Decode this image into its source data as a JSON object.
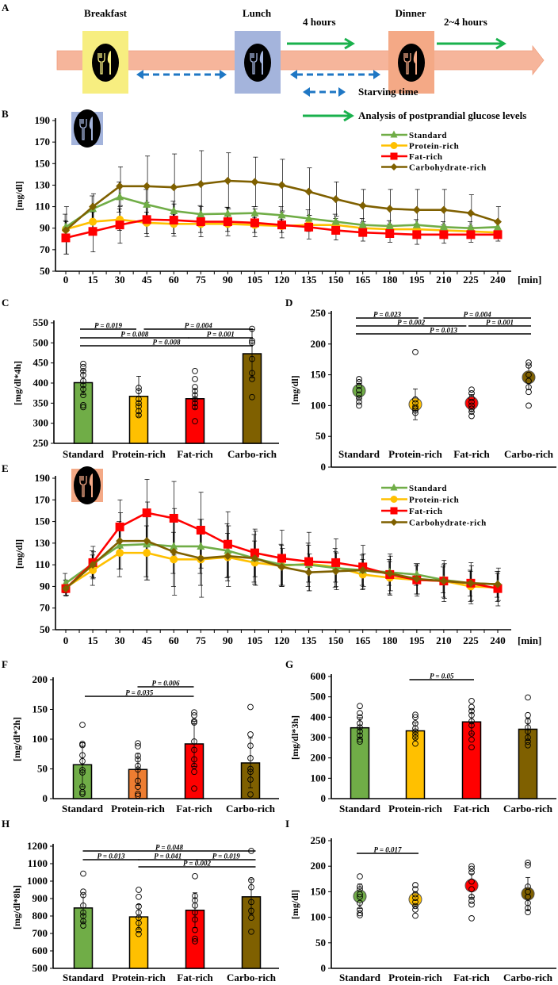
{
  "panel_a": {
    "letter": "A",
    "meals": [
      "Breakfast",
      "Lunch",
      "Dinner"
    ],
    "after_lunch": "4 hours",
    "after_dinner": "2~4 hours",
    "legend_starving": "Starving time",
    "legend_analysis": "Analysis of postprandial glucose levels",
    "colors": {
      "breakfast": "#f7ee80",
      "lunch": "#a4b4dc",
      "dinner": "#f4a986",
      "band": "#f6b59b",
      "starving": "#1f77c4",
      "analysis": "#19b14c"
    }
  },
  "chart_data": [
    {
      "id": "B",
      "letter": "B",
      "type": "line",
      "meal_icon": "lunch-icon",
      "x": [
        0,
        15,
        30,
        45,
        60,
        75,
        90,
        105,
        120,
        135,
        150,
        165,
        180,
        195,
        210,
        225,
        240
      ],
      "xunit": "[min]",
      "ylabel": "[mg/dl]",
      "ylim": [
        50,
        190
      ],
      "yticks": [
        50,
        70,
        90,
        110,
        130,
        150,
        170,
        190
      ],
      "series": [
        {
          "name": "Standard",
          "color": "#70ad47",
          "marker": "triangle",
          "values": [
            91,
            108,
            119,
            112,
            106,
            103,
            103.5,
            104,
            102,
            99,
            96,
            93,
            92,
            93,
            91,
            90,
            91
          ],
          "sd": [
            12,
            12,
            14,
            14,
            9,
            8,
            6,
            6,
            8,
            8,
            7,
            6,
            5,
            5,
            5,
            6,
            6
          ]
        },
        {
          "name": "Protein-rich",
          "color": "#ffc000",
          "marker": "circle",
          "values": [
            89,
            96,
            98,
            95,
            94,
            94,
            94,
            93,
            92,
            93,
            93,
            90,
            89,
            89,
            88,
            87,
            86
          ],
          "sd": [
            8,
            9,
            10,
            10,
            9,
            8,
            7,
            7,
            6,
            6,
            6,
            5,
            5,
            5,
            5,
            5,
            5
          ]
        },
        {
          "name": "Fat-rich",
          "color": "#ff0000",
          "marker": "square",
          "values": [
            81,
            87,
            93,
            98,
            97.5,
            96,
            96,
            95,
            93,
            91,
            88,
            86,
            85,
            84,
            84,
            84,
            84
          ],
          "sd": [
            15,
            19,
            17,
            16,
            15,
            14,
            13,
            13,
            12,
            11,
            9,
            8,
            8,
            9,
            8,
            7,
            6
          ]
        },
        {
          "name": "Carbohydrate-rich",
          "color": "#7f6000",
          "marker": "diamond",
          "values": [
            88,
            110,
            129,
            129,
            128,
            131,
            134,
            133,
            130,
            124,
            117,
            111,
            108,
            107,
            107,
            104,
            96
          ],
          "sd": [
            22,
            12,
            18,
            28,
            31,
            31,
            26,
            23,
            24,
            22,
            16,
            15,
            18,
            19,
            19,
            17,
            14
          ]
        }
      ]
    },
    {
      "id": "C",
      "letter": "C",
      "type": "bar",
      "ylabel": "[mg/dl*4h]",
      "ylim": [
        250,
        550
      ],
      "yticks": [
        250,
        300,
        350,
        400,
        450,
        500,
        550
      ],
      "categories": [
        "Standard",
        "Protein-rich",
        "Fat-rich",
        "Carbo-rich"
      ],
      "colors": [
        "#70ad47",
        "#ffc000",
        "#ff0000",
        "#7f6000"
      ],
      "values": [
        401,
        367,
        361,
        473
      ],
      "sd": [
        30,
        50,
        25,
        60
      ],
      "points": [
        [
          448,
          440,
          430,
          420,
          405,
          395,
          385,
          370,
          345,
          340
        ],
        [
          388,
          380,
          360,
          350,
          342,
          330,
          320
        ],
        [
          430,
          410,
          390,
          380,
          370,
          360,
          350,
          340,
          305
        ],
        [
          535,
          505,
          500,
          460,
          425,
          410,
          365
        ]
      ],
      "pvalues": [
        {
          "text": "P = 0.019",
          "from": 0,
          "to": 0.9,
          "level": 0
        },
        {
          "text": "P = 0.004",
          "from": 1.15,
          "to": 3,
          "level": 0
        },
        {
          "text": "P = 0.008",
          "from": 0,
          "to": 1.85,
          "level": 1
        },
        {
          "text": "P = 0.001",
          "from": 1.95,
          "to": 3,
          "level": 1
        },
        {
          "text": "P = 0.008",
          "from": 0,
          "to": 3,
          "level": 2
        }
      ]
    },
    {
      "id": "D",
      "letter": "D",
      "type": "dot",
      "ylabel": "[mg/dl]",
      "ylim": [
        0,
        250
      ],
      "yticks": [
        0,
        50,
        100,
        150,
        200,
        250
      ],
      "categories": [
        "Standard",
        "Protein-rich",
        "Fat-rich",
        "Carbo-rich"
      ],
      "colors": [
        "#70ad47",
        "#ffc000",
        "#ff0000",
        "#7f6000"
      ],
      "values": [
        124,
        102,
        104,
        146
      ],
      "sd": [
        12,
        25,
        14,
        20
      ],
      "points": [
        [
          143,
          138,
          132,
          125,
          118,
          112,
          106,
          100
        ],
        [
          187,
          110,
          104,
          98,
          95,
          92,
          88
        ],
        [
          126,
          120,
          112,
          106,
          100,
          95,
          90,
          83
        ],
        [
          170,
          165,
          150,
          140,
          130,
          122,
          100
        ]
      ],
      "pvalues": [
        {
          "text": "P = 0.023",
          "from": 0,
          "to": 1,
          "level": 0
        },
        {
          "text": "P = 0.004",
          "from": 1.2,
          "to": 3,
          "level": 0
        },
        {
          "text": "P = 0.002",
          "from": 0,
          "to": 1.85,
          "level": 1
        },
        {
          "text": "P = 0.001",
          "from": 2,
          "to": 3,
          "level": 1
        },
        {
          "text": "P = 0.013",
          "from": 0,
          "to": 3,
          "level": 2
        }
      ]
    },
    {
      "id": "E",
      "letter": "E",
      "type": "line",
      "meal_icon": "dinner-icon",
      "x": [
        0,
        15,
        30,
        45,
        60,
        75,
        90,
        105,
        120,
        135,
        150,
        165,
        180,
        195,
        210,
        225,
        240
      ],
      "xunit": "[min]",
      "ylabel": "[mg/dl]",
      "ylim": [
        50,
        190
      ],
      "yticks": [
        50,
        70,
        90,
        110,
        130,
        150,
        170,
        190
      ],
      "series": [
        {
          "name": "Standard",
          "color": "#70ad47",
          "marker": "triangle",
          "values": [
            93,
            111,
            128,
            129,
            127,
            127,
            123,
            116,
            110,
            110,
            107,
            105,
            103,
            101,
            96,
            93,
            92
          ],
          "sd": [
            9,
            12,
            22,
            30,
            25,
            25,
            25,
            22,
            19,
            20,
            18,
            14,
            12,
            10,
            12,
            12,
            12
          ]
        },
        {
          "name": "Protein-rich",
          "color": "#ffc000",
          "marker": "circle",
          "values": [
            89,
            105,
            121,
            121,
            115,
            115,
            117,
            112,
            109,
            111,
            108,
            101,
            98,
            96,
            95,
            90,
            89
          ],
          "sd": [
            7,
            14,
            22,
            25,
            25,
            24,
            22,
            20,
            19,
            17,
            14,
            14,
            15,
            13,
            15,
            14,
            13
          ]
        },
        {
          "name": "Fat-rich",
          "color": "#ff0000",
          "marker": "square",
          "values": [
            88,
            112,
            145,
            158,
            153,
            142,
            129,
            121,
            116,
            113,
            112,
            108,
            101,
            96,
            95,
            93,
            88
          ],
          "sd": [
            7,
            15,
            25,
            31,
            34,
            35,
            30,
            22,
            26,
            27,
            22,
            20,
            19,
            15,
            19,
            19,
            16
          ]
        },
        {
          "name": "Carbohydrate-rich",
          "color": "#7f6000",
          "marker": "diamond",
          "values": [
            88,
            110,
            132,
            132,
            122,
            116,
            118,
            116,
            108,
            103,
            104,
            105,
            102,
            97,
            95,
            93,
            92
          ],
          "sd": [
            6,
            12,
            26,
            36,
            40,
            36,
            28,
            25,
            17,
            17,
            17,
            15,
            16,
            14,
            16,
            16,
            15
          ]
        }
      ]
    },
    {
      "id": "F",
      "letter": "F",
      "type": "bar",
      "ylabel": "[mg/dl*2h]",
      "ylim": [
        0,
        200
      ],
      "yticks": [
        0,
        50,
        100,
        150,
        200
      ],
      "categories": [
        "Standard",
        "Protein-rich",
        "Fat-rich",
        "Carbo-rich"
      ],
      "colors": [
        "#70ad47",
        "#ed7d31",
        "#ff0000",
        "#7f6000"
      ],
      "values": [
        57,
        49,
        92,
        60
      ],
      "sd": [
        37,
        27,
        38,
        42
      ],
      "points": [
        [
          124,
          92,
          90,
          73,
          63,
          48,
          44,
          20,
          11,
          8
        ],
        [
          93,
          88,
          72,
          66,
          55,
          49,
          30,
          20,
          8,
          5
        ],
        [
          145,
          140,
          130,
          128,
          96,
          82,
          66,
          55,
          45,
          17
        ],
        [
          154,
          108,
          89,
          68,
          50,
          45,
          32,
          7
        ]
      ],
      "pvalues": [
        {
          "text": "P = 0.006",
          "from": 1.05,
          "to": 1.95,
          "level": 0
        },
        {
          "text": "P = 0.035",
          "from": 0.1,
          "to": 1.95,
          "level": 1
        }
      ]
    },
    {
      "id": "G",
      "letter": "G",
      "type": "bar",
      "ylabel": "[mg/dl*3h]",
      "ylim": [
        0,
        600
      ],
      "yticks": [
        0,
        100,
        200,
        300,
        400,
        500,
        600
      ],
      "categories": [
        "Standard",
        "Protein-rich",
        "Fat-rich",
        "Carbo-rich"
      ],
      "colors": [
        "#70ad47",
        "#ffc000",
        "#ff0000",
        "#7f6000"
      ],
      "values": [
        348,
        333,
        377,
        341
      ],
      "sd": [
        50,
        40,
        60,
        55
      ],
      "points": [
        [
          455,
          420,
          400,
          370,
          350,
          330,
          310,
          290,
          280
        ],
        [
          412,
          400,
          370,
          345,
          330,
          315,
          300,
          270
        ],
        [
          480,
          450,
          430,
          410,
          380,
          360,
          320,
          290,
          252
        ],
        [
          497,
          410,
          380,
          350,
          330,
          300,
          280,
          262
        ]
      ],
      "pvalues": [
        {
          "text": "P = 0.05",
          "from": 0.95,
          "to": 2,
          "level": 0
        }
      ]
    },
    {
      "id": "H",
      "letter": "H",
      "type": "bar",
      "ylabel": "[mg/dl*8h]",
      "ylim": [
        500,
        1200
      ],
      "yticks": [
        500,
        600,
        700,
        800,
        900,
        1000,
        1100,
        1200
      ],
      "categories": [
        "Standard",
        "Protein-rich",
        "Fat-rich",
        "Carbo-rich"
      ],
      "colors": [
        "#70ad47",
        "#ffc000",
        "#ff0000",
        "#7f6000"
      ],
      "values": [
        846,
        795,
        833,
        910
      ],
      "sd": [
        80,
        70,
        100,
        100
      ],
      "points": [
        [
          1043,
          940,
          920,
          860,
          820,
          800,
          770,
          745
        ],
        [
          950,
          910,
          855,
          820,
          790,
          760,
          720,
          697
        ],
        [
          1028,
          915,
          890,
          860,
          820,
          780,
          720,
          670,
          655
        ],
        [
          1173,
          1005,
          965,
          880,
          830,
          790,
          710
        ]
      ],
      "pvalues": [
        {
          "text": "P = 0.048",
          "from": 0.05,
          "to": 3.05,
          "level": 0
        },
        {
          "text": "P = 0.013",
          "from": 0.05,
          "to": 0.95,
          "level": 1
        },
        {
          "text": "P = 0.041",
          "from": 1.05,
          "to": 2,
          "level": 1
        },
        {
          "text": "P = 0.019",
          "from": 2.1,
          "to": 3.05,
          "level": 1
        },
        {
          "text": "P = 0.002",
          "from": 1.05,
          "to": 3.05,
          "level": 2
        }
      ]
    },
    {
      "id": "I",
      "letter": "I",
      "type": "dot",
      "ylabel": "[mg/dl]",
      "ylim": [
        0,
        250
      ],
      "yticks": [
        0,
        50,
        100,
        150,
        200,
        250
      ],
      "categories": [
        "Standard",
        "Protein-rich",
        "Fat-rich",
        "Carbo-rich"
      ],
      "colors": [
        "#70ad47",
        "#ffc000",
        "#ff0000",
        "#7f6000"
      ],
      "values": [
        141,
        135,
        162,
        146
      ],
      "sd": [
        24,
        14,
        23,
        32
      ],
      "points": [
        [
          180,
          160,
          155,
          145,
          140,
          128,
          115,
          108,
          104
        ],
        [
          163,
          155,
          145,
          138,
          130,
          122,
          115,
          103
        ],
        [
          200,
          195,
          188,
          170,
          155,
          140,
          132,
          125,
          98
        ],
        [
          207,
          202,
          160,
          150,
          140,
          128,
          118,
          110
        ]
      ],
      "pvalues": [
        {
          "text": "P = 0.017",
          "from": 0,
          "to": 1,
          "level": 0
        }
      ]
    }
  ]
}
